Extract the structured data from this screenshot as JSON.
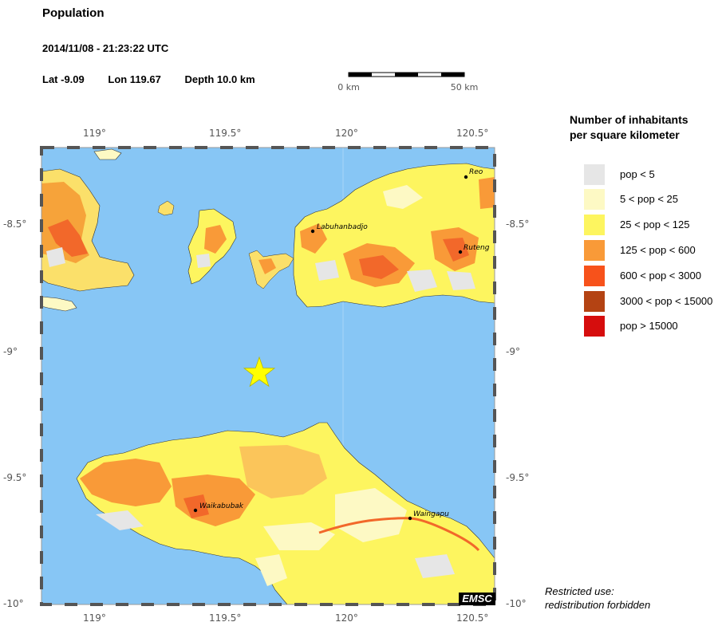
{
  "header": {
    "title": "Population",
    "datetime": "2014/11/08 - 21:23:22 UTC",
    "lat": "Lat -9.09",
    "lon": "Lon 119.67",
    "depth": "Depth  10.0 km"
  },
  "scale": {
    "start_label": "0 km",
    "end_label": "50 km"
  },
  "axes": {
    "longitude_ticks": [
      "119°",
      "119.5°",
      "120°",
      "120.5°"
    ],
    "latitude_ticks": [
      "-8.5°",
      "-9°",
      "-9.5°",
      "-10°"
    ]
  },
  "map": {
    "epicenter": {
      "lat": -9.09,
      "lon": 119.67,
      "marker": "star-icon",
      "color": "#ffff00"
    },
    "sea_color": "#87c6f5",
    "cities": [
      {
        "name": "Reo"
      },
      {
        "name": "Labuhanbadjo"
      },
      {
        "name": "Ruteng"
      },
      {
        "name": "Waikabubak"
      },
      {
        "name": "Waingapu"
      }
    ]
  },
  "legend": {
    "title_line1": "Number of inhabitants",
    "title_line2": "per square kilometer",
    "items": [
      {
        "label": "pop < 5",
        "color": "#e6e6e6"
      },
      {
        "label": "5 < pop < 25",
        "color": "#fdf9c4"
      },
      {
        "label": "25 < pop < 125",
        "color": "#fdf55f"
      },
      {
        "label": "125 < pop < 600",
        "color": "#f99a38"
      },
      {
        "label": "600 < pop < 3000",
        "color": "#f7521b"
      },
      {
        "label": "3000 < pop < 15000",
        "color": "#b44313"
      },
      {
        "label": "pop > 15000",
        "color": "#d60d0d"
      }
    ]
  },
  "footer": {
    "note_line1": "Restricted use:",
    "note_line2": "redistribution forbidden",
    "logo_text": "EMSC"
  }
}
